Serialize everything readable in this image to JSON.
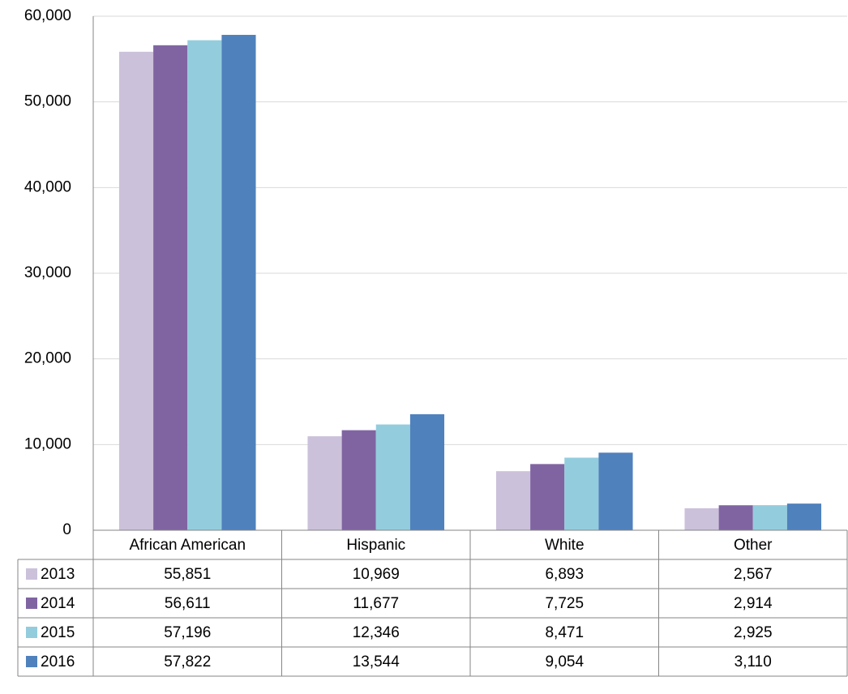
{
  "chart_data": {
    "type": "bar",
    "categories": [
      "African American",
      "Hispanic",
      "White",
      "Other"
    ],
    "series": [
      {
        "name": "2013",
        "color": "#ccc1da",
        "values": [
          55851,
          10969,
          6893,
          2567
        ],
        "value_labels": [
          "55,851",
          "10,969",
          "6,893",
          "2,567"
        ]
      },
      {
        "name": "2014",
        "color": "#8064a2",
        "values": [
          56611,
          11677,
          7725,
          2914
        ],
        "value_labels": [
          "56,611",
          "11,677",
          "7,725",
          "2,914"
        ]
      },
      {
        "name": "2015",
        "color": "#93cddd",
        "values": [
          57196,
          12346,
          8471,
          2925
        ],
        "value_labels": [
          "57,196",
          "12,346",
          "8,471",
          "2,925"
        ]
      },
      {
        "name": "2016",
        "color": "#4f81bd",
        "values": [
          57822,
          13544,
          9054,
          3110
        ],
        "value_labels": [
          "57,822",
          "13,544",
          "9,054",
          "3,110"
        ]
      }
    ],
    "ylim": [
      0,
      60000
    ],
    "yticks": [
      0,
      {
        "value": 10000,
        "label": "10,000"
      },
      {
        "value": 20000,
        "label": "20,000"
      },
      {
        "value": 30000,
        "label": "30,000"
      },
      {
        "value": 40000,
        "label": "40,000"
      },
      {
        "value": 50000,
        "label": "50,000"
      },
      {
        "value": 60000,
        "label": "60,000"
      }
    ],
    "grid": true
  }
}
